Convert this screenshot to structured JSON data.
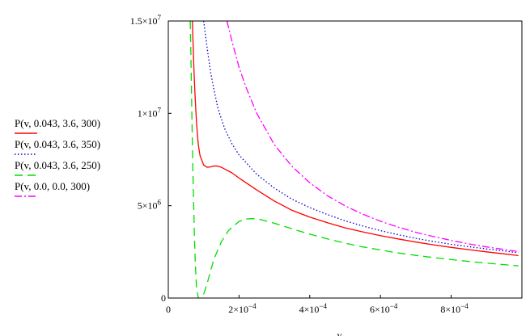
{
  "chart_data": {
    "type": "line",
    "xlabel": "v",
    "ylabel": "",
    "xlim": [
      0,
      0.001
    ],
    "ylim": [
      0,
      15000000
    ],
    "grid": false,
    "legend_position": "left",
    "x_ticks": [
      {
        "value": 0,
        "base": "0",
        "exp": ""
      },
      {
        "value": 0.0002,
        "base": "2×10",
        "exp": "−4"
      },
      {
        "value": 0.0004,
        "base": "4×10",
        "exp": "−4"
      },
      {
        "value": 0.0006,
        "base": "6×10",
        "exp": "−4"
      },
      {
        "value": 0.0008,
        "base": "8×10",
        "exp": "−4"
      }
    ],
    "y_ticks": [
      {
        "value": 0,
        "base": "0",
        "exp": ""
      },
      {
        "value": 5000000,
        "base": "5×10",
        "exp": "6"
      },
      {
        "value": 10000000,
        "base": "1×10",
        "exp": "7"
      },
      {
        "value": 15000000,
        "base": "1.5×10",
        "exp": "7"
      }
    ],
    "series": [
      {
        "name": "P(v, 0.043, 3.6, 300)",
        "color": "#ff0000",
        "style": "solid",
        "x": [
          6.8e-05,
          7e-05,
          7.2e-05,
          7.5e-05,
          7.8e-05,
          8e-05,
          8.3e-05,
          8.5e-05,
          8.8e-05,
          9e-05,
          0.0001,
          0.00011,
          0.00012,
          0.00013,
          0.00014,
          0.00015,
          0.00016,
          0.00018,
          0.0002,
          0.00025,
          0.0003,
          0.00035,
          0.0004,
          0.00045,
          0.0005,
          0.00055,
          0.0006,
          0.00065,
          0.0007,
          0.00075,
          0.0008,
          0.00085,
          0.0009,
          0.00095,
          0.00099
        ],
        "y": [
          15000000,
          13800000,
          12600000,
          11200000,
          10100000,
          9400000,
          8700000,
          8300000,
          7900000,
          7700000,
          7200000,
          7080000,
          7100000,
          7150000,
          7140000,
          7080000,
          6980000,
          6780000,
          6500000,
          5850000,
          5250000,
          4750000,
          4380000,
          4080000,
          3800000,
          3580000,
          3380000,
          3200000,
          3030000,
          2880000,
          2740000,
          2620000,
          2500000,
          2390000,
          2300000
        ]
      },
      {
        "name": "P(v, 0.043, 3.6, 350)",
        "color": "#0000cc",
        "style": "dotted",
        "x": [
          0.0001,
          0.00011,
          0.00012,
          0.00013,
          0.00014,
          0.00015,
          0.00016,
          0.00018,
          0.0002,
          0.00025,
          0.0003,
          0.00035,
          0.0004,
          0.00045,
          0.0005,
          0.00055,
          0.0006,
          0.00065,
          0.0007,
          0.00075,
          0.0008,
          0.00085,
          0.0009,
          0.00095,
          0.00099
        ],
        "y": [
          15000000,
          13500000,
          12200000,
          11200000,
          10300000,
          9700000,
          9150000,
          8350000,
          7750000,
          6700000,
          5950000,
          5350000,
          4900000,
          4520000,
          4180000,
          3900000,
          3650000,
          3430000,
          3230000,
          3060000,
          2910000,
          2780000,
          2660000,
          2550000,
          2450000
        ]
      },
      {
        "name": "P(v, 0.043, 3.6, 250)",
        "color": "#00dd00",
        "style": "dashed",
        "x": [
          6.2e-05,
          6.4e-05,
          6.6e-05,
          6.8e-05,
          7e-05,
          7.2e-05,
          7.4e-05,
          7.6e-05,
          7.8e-05,
          8e-05,
          8.5e-05,
          9e-05,
          0.0001,
          0.00011,
          0.00012,
          0.00013,
          0.00015,
          0.00017,
          0.0002,
          0.00022,
          0.00024,
          0.00026,
          0.0003,
          0.00035,
          0.0004,
          0.00045,
          0.0005,
          0.00055,
          0.0006,
          0.00065,
          0.0007,
          0.00075,
          0.0008,
          0.00085,
          0.0009,
          0.00095,
          0.00099
        ],
        "y": [
          15000000,
          13000000,
          10800000,
          8500000,
          6500000,
          4800000,
          3300000,
          2100000,
          1200000,
          500000,
          0,
          0,
          200000,
          800000,
          1500000,
          2150000,
          3050000,
          3650000,
          4150000,
          4280000,
          4300000,
          4250000,
          4050000,
          3750000,
          3460000,
          3200000,
          2970000,
          2770000,
          2600000,
          2440000,
          2310000,
          2190000,
          2080000,
          1980000,
          1890000,
          1810000,
          1740000
        ]
      },
      {
        "name": "P(v, 0.0, 0.0, 300)",
        "color": "#ff00ff",
        "style": "dashdot",
        "x": [
          0.000166,
          0.00018,
          0.0002,
          0.00022,
          0.00025,
          0.0003,
          0.00035,
          0.0004,
          0.00045,
          0.0005,
          0.00055,
          0.0006,
          0.00065,
          0.0007,
          0.00075,
          0.0008,
          0.00085,
          0.0009,
          0.00095,
          0.00099
        ],
        "y": [
          15000000,
          13900000,
          12500000,
          11400000,
          10000000,
          8300000,
          7130000,
          6240000,
          5540000,
          4990000,
          4540000,
          4160000,
          3840000,
          3560000,
          3330000,
          3120000,
          2930000,
          2770000,
          2630000,
          2520000
        ]
      }
    ]
  }
}
